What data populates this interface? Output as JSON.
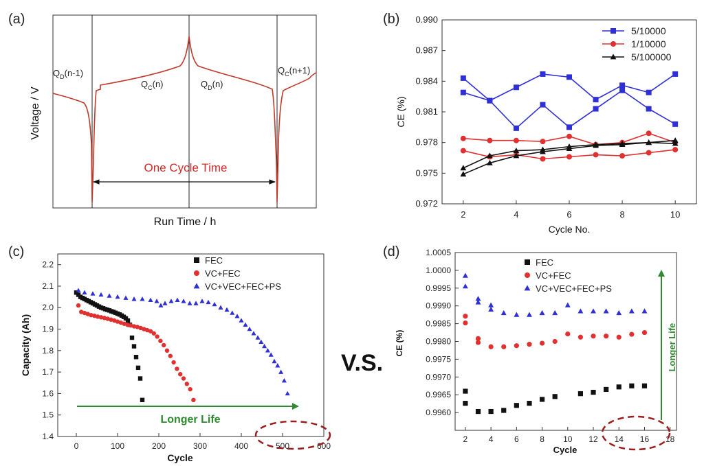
{
  "panel_labels": {
    "a": "(a)",
    "b": "(b)",
    "c": "(c)",
    "d": "(d)"
  },
  "vs_text": "V.S.",
  "chart_data": [
    {
      "id": "a",
      "type": "line",
      "title": "",
      "xlabel": "Run Time / h",
      "ylabel": "Voltage / V",
      "annotations": {
        "qd_prev": [
          "Q",
          "D",
          "(n-1)"
        ],
        "qc_n": [
          "Q",
          "C",
          "(n)"
        ],
        "qd_n": [
          "Q",
          "D",
          "(n)"
        ],
        "qc_next": [
          "Q",
          "C",
          "(n+1)"
        ],
        "cycle": "One Cycle Time"
      },
      "line_color": "#c0392b"
    },
    {
      "id": "b",
      "type": "line",
      "xlabel": "Cycle No.",
      "ylabel": "CE (%)",
      "xlim": [
        1.2,
        10.8
      ],
      "ylim": [
        0.972,
        0.99
      ],
      "xticks": [
        2,
        4,
        6,
        8,
        10
      ],
      "yticks": [
        "0.972",
        "0.975",
        "0.978",
        "0.981",
        "0.984",
        "0.987",
        "0.990"
      ],
      "legend_position": "top-right",
      "series": [
        {
          "name": "5/10000",
          "color": "#2f2fd6",
          "marker": "square",
          "lines": [
            {
              "x": [
                2,
                3,
                4,
                5,
                6,
                7,
                8,
                9,
                10
              ],
              "y": [
                0.9843,
                0.9821,
                0.9834,
                0.9847,
                0.9844,
                0.9822,
                0.9836,
                0.9829,
                0.9847
              ]
            },
            {
              "x": [
                2,
                3,
                4,
                5,
                6,
                7,
                8,
                9,
                10
              ],
              "y": [
                0.9829,
                0.9821,
                0.9794,
                0.9817,
                0.9795,
                0.9813,
                0.9831,
                0.9813,
                0.9798
              ]
            }
          ]
        },
        {
          "name": "1/10000",
          "color": "#e03030",
          "marker": "circle",
          "lines": [
            {
              "x": [
                2,
                3,
                4,
                5,
                6,
                7,
                8,
                9,
                10
              ],
              "y": [
                0.9784,
                0.9782,
                0.9782,
                0.9781,
                0.9786,
                0.9778,
                0.978,
                0.9789,
                0.978
              ]
            },
            {
              "x": [
                2,
                3,
                4,
                5,
                6,
                7,
                8,
                9,
                10
              ],
              "y": [
                0.9772,
                0.9766,
                0.9768,
                0.9764,
                0.9766,
                0.9768,
                0.9767,
                0.977,
                0.9773
              ]
            }
          ]
        },
        {
          "name": "5/100000",
          "color": "#111111",
          "marker": "triangle",
          "lines": [
            {
              "x": [
                2,
                3,
                4,
                5,
                6,
                7,
                8,
                9,
                10
              ],
              "y": [
                0.9755,
                0.9767,
                0.9772,
                0.9773,
                0.9776,
                0.9778,
                0.9779,
                0.978,
                0.9782
              ]
            },
            {
              "x": [
                2,
                3,
                4,
                5,
                6,
                7,
                8,
                9,
                10
              ],
              "y": [
                0.9749,
                0.976,
                0.9767,
                0.9771,
                0.9774,
                0.9777,
                0.9778,
                0.978,
                0.9779
              ]
            }
          ]
        }
      ]
    },
    {
      "id": "c",
      "type": "scatter",
      "xlabel": "Cycle",
      "ylabel": "Capacity (Ah)",
      "xlim": [
        -45,
        600
      ],
      "ylim": [
        1.4,
        2.25
      ],
      "xticks": [
        0,
        100,
        200,
        300,
        400,
        500,
        600
      ],
      "yticks": [
        "1.4",
        "1.5",
        "1.6",
        "1.7",
        "1.8",
        "1.9",
        "2.0",
        "2.1",
        "2.2"
      ],
      "legend_position": "top-right",
      "arrow_text": "Longer Life",
      "series": [
        {
          "name": "FEC",
          "color": "#111111",
          "marker": "square",
          "x": [
            0,
            5,
            10,
            15,
            20,
            25,
            30,
            35,
            40,
            45,
            50,
            55,
            60,
            65,
            70,
            75,
            80,
            85,
            90,
            95,
            100,
            105,
            110,
            115,
            120,
            125,
            130,
            135,
            140,
            145,
            150,
            155,
            160
          ],
          "y": [
            2.07,
            2.06,
            2.05,
            2.045,
            2.04,
            2.035,
            2.03,
            2.025,
            2.02,
            2.015,
            2.01,
            2.005,
            2.0,
            1.997,
            1.993,
            1.99,
            1.987,
            1.983,
            1.98,
            1.976,
            1.972,
            1.968,
            1.963,
            1.957,
            1.95,
            1.94,
            1.92,
            1.86,
            1.82,
            1.77,
            1.72,
            1.67,
            1.57
          ]
        },
        {
          "name": "VC+FEC",
          "color": "#e03030",
          "marker": "circle",
          "x": [
            5,
            12,
            20,
            28,
            36,
            44,
            52,
            60,
            68,
            76,
            84,
            92,
            100,
            108,
            116,
            124,
            132,
            140,
            148,
            156,
            164,
            172,
            180,
            188,
            196,
            204,
            212,
            220,
            228,
            236,
            244,
            252,
            260,
            268,
            276,
            284
          ],
          "y": [
            2.01,
            1.98,
            1.975,
            1.97,
            1.965,
            1.962,
            1.958,
            1.955,
            1.952,
            1.948,
            1.944,
            1.94,
            1.935,
            1.93,
            1.925,
            1.92,
            1.917,
            1.913,
            1.91,
            1.905,
            1.9,
            1.895,
            1.89,
            1.88,
            1.865,
            1.845,
            1.825,
            1.8,
            1.775,
            1.745,
            1.715,
            1.69,
            1.67,
            1.645,
            1.62,
            1.57
          ]
        },
        {
          "name": "VC+VEC+FEC+PS",
          "color": "#2f2fd6",
          "marker": "triangle",
          "x": [
            5,
            20,
            40,
            60,
            80,
            100,
            120,
            140,
            160,
            180,
            195,
            205,
            215,
            230,
            245,
            260,
            275,
            290,
            305,
            320,
            335,
            350,
            365,
            378,
            390,
            400,
            410,
            420,
            430,
            440,
            448,
            456,
            464,
            472,
            480,
            488,
            496,
            504,
            512
          ],
          "y": [
            2.08,
            2.07,
            2.065,
            2.06,
            2.055,
            2.05,
            2.045,
            2.04,
            2.04,
            2.035,
            2.03,
            2.01,
            2.02,
            2.03,
            2.035,
            2.03,
            2.02,
            2.02,
            2.03,
            2.025,
            2.015,
            2.0,
            1.99,
            1.975,
            1.96,
            1.94,
            1.92,
            1.9,
            1.88,
            1.86,
            1.84,
            1.82,
            1.8,
            1.78,
            1.75,
            1.73,
            1.7,
            1.66,
            1.6
          ]
        }
      ]
    },
    {
      "id": "d",
      "type": "scatter",
      "xlabel": "Cycle",
      "ylabel": "CE (%)",
      "xlim": [
        1.2,
        18.5
      ],
      "ylim": [
        0.9955,
        1.0005
      ],
      "xticks": [
        2,
        4,
        6,
        8,
        10,
        12,
        14,
        16,
        18
      ],
      "yticks": [
        "0.9960",
        "0.9965",
        "0.9970",
        "0.9975",
        "0.9980",
        "0.9985",
        "0.9990",
        "0.9995",
        "1.0000",
        "1.0005"
      ],
      "legend_position": "top-left",
      "arrow_text": "Longer Life",
      "series": [
        {
          "name": "FEC",
          "color": "#111111",
          "marker": "square",
          "x": [
            2,
            2,
            3,
            4,
            5,
            6,
            7,
            8,
            9,
            11,
            12,
            13,
            14,
            15,
            16
          ],
          "y": [
            0.99626,
            0.9966,
            0.99603,
            0.99603,
            0.99606,
            0.9962,
            0.99626,
            0.99637,
            0.99645,
            0.99653,
            0.99657,
            0.99665,
            0.99672,
            0.99675,
            0.99675
          ]
        },
        {
          "name": "VC+FEC",
          "color": "#e03030",
          "marker": "circle",
          "x": [
            2,
            2,
            3,
            3,
            4,
            5,
            6,
            7,
            8,
            9,
            10,
            11,
            12,
            13,
            14,
            15,
            16
          ],
          "y": [
            0.99871,
            0.99852,
            0.99808,
            0.99797,
            0.99785,
            0.99785,
            0.99788,
            0.99792,
            0.99795,
            0.998,
            0.99821,
            0.99812,
            0.99815,
            0.99815,
            0.99812,
            0.9982,
            0.99825
          ]
        },
        {
          "name": "VC+VEC+FEC+PS",
          "color": "#2f2fd6",
          "marker": "triangle",
          "x": [
            2,
            2,
            3,
            3,
            4,
            4,
            5,
            6,
            7,
            8,
            9,
            10,
            11,
            12,
            13,
            14,
            15,
            16
          ],
          "y": [
            0.99985,
            0.99955,
            0.9992,
            0.9991,
            0.99902,
            0.9989,
            0.9988,
            0.99875,
            0.99875,
            0.9988,
            0.9988,
            0.99902,
            0.99885,
            0.99885,
            0.99885,
            0.9988,
            0.99885,
            0.99885
          ]
        }
      ]
    }
  ]
}
